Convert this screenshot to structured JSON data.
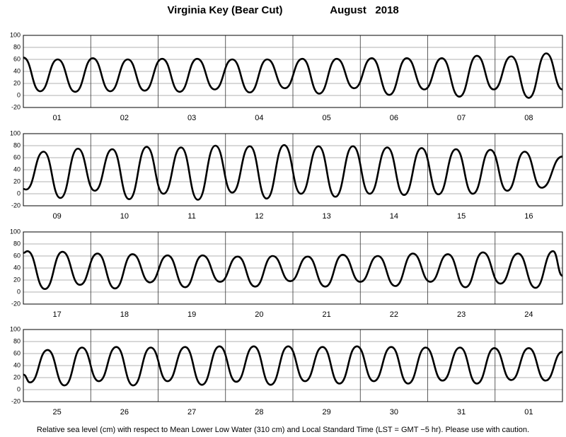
{
  "title": "Virginia Key (Bear Cut)",
  "subtitle": "August   2018",
  "note": "Relative sea level (cm) with respect to Mean Lower Low Water (310 cm) and Local Standard Time (LST = GMT −5 hr). Please use with caution.",
  "chart_data": [
    {
      "type": "line",
      "xlim": [
        0,
        8
      ],
      "ylim": [
        -20,
        100
      ],
      "yticks": [
        -20,
        0,
        20,
        40,
        60,
        80,
        100
      ],
      "grid": true,
      "xgrid": [
        1,
        2,
        3,
        4,
        5,
        6,
        7
      ],
      "xticks": [
        {
          "value": 0.5,
          "label": "01"
        },
        {
          "value": 1.5,
          "label": "02"
        },
        {
          "value": 2.5,
          "label": "03"
        },
        {
          "value": 3.5,
          "label": "04"
        },
        {
          "value": 4.5,
          "label": "05"
        },
        {
          "value": 5.5,
          "label": "06"
        },
        {
          "value": 6.5,
          "label": "07"
        },
        {
          "value": 7.5,
          "label": "08"
        }
      ],
      "x": [
        0,
        0.25,
        0.51,
        0.77,
        1.03,
        1.29,
        1.55,
        1.8,
        2.06,
        2.32,
        2.58,
        2.84,
        3.1,
        3.36,
        3.62,
        3.88,
        4.14,
        4.39,
        4.65,
        4.91,
        5.17,
        5.43,
        5.69,
        5.95,
        6.21,
        6.47,
        6.73,
        6.98,
        7.24,
        7.5,
        7.76,
        8
      ],
      "series": [
        {
          "color": "#000000",
          "values": [
            63,
            7,
            60,
            6,
            62,
            7,
            60,
            8,
            61,
            6,
            61,
            10,
            60,
            5,
            60,
            12,
            61,
            3,
            61,
            12,
            62,
            1,
            62,
            10,
            62,
            -2,
            66,
            10,
            65,
            -4,
            70,
            10
          ]
        }
      ]
    },
    {
      "type": "line",
      "xlim": [
        0,
        8
      ],
      "ylim": [
        -20,
        100
      ],
      "yticks": [
        -20,
        0,
        20,
        40,
        60,
        80,
        100
      ],
      "grid": true,
      "xgrid": [
        1,
        2,
        3,
        4,
        5,
        6,
        7
      ],
      "xticks": [
        {
          "value": 0.5,
          "label": "09"
        },
        {
          "value": 1.5,
          "label": "10"
        },
        {
          "value": 2.5,
          "label": "11"
        },
        {
          "value": 3.5,
          "label": "12"
        },
        {
          "value": 4.5,
          "label": "13"
        },
        {
          "value": 5.5,
          "label": "14"
        },
        {
          "value": 6.5,
          "label": "15"
        },
        {
          "value": 7.5,
          "label": "16"
        }
      ],
      "x": [
        0,
        0.04,
        0.3,
        0.55,
        0.81,
        1.06,
        1.32,
        1.57,
        1.83,
        2.08,
        2.34,
        2.59,
        2.85,
        3.1,
        3.36,
        3.61,
        3.87,
        4.12,
        4.38,
        4.63,
        4.89,
        5.14,
        5.4,
        5.65,
        5.91,
        6.16,
        6.42,
        6.67,
        6.93,
        7.18,
        7.44,
        7.69,
        8
      ],
      "series": [
        {
          "color": "#000000",
          "values": [
            8,
            7,
            70,
            -7,
            75,
            5,
            74,
            -9,
            78,
            0,
            77,
            -10,
            80,
            2,
            79,
            -8,
            81,
            0,
            79,
            -5,
            79,
            0,
            77,
            -2,
            76,
            -1,
            74,
            0,
            73,
            5,
            70,
            10,
            62
          ]
        }
      ]
    },
    {
      "type": "line",
      "xlim": [
        0,
        8
      ],
      "ylim": [
        -20,
        100
      ],
      "yticks": [
        -20,
        0,
        20,
        40,
        60,
        80,
        100
      ],
      "grid": true,
      "xgrid": [
        1,
        2,
        3,
        4,
        5,
        6,
        7
      ],
      "xticks": [
        {
          "value": 0.5,
          "label": "17"
        },
        {
          "value": 1.5,
          "label": "18"
        },
        {
          "value": 2.5,
          "label": "19"
        },
        {
          "value": 3.5,
          "label": "20"
        },
        {
          "value": 4.5,
          "label": "21"
        },
        {
          "value": 5.5,
          "label": "22"
        },
        {
          "value": 6.5,
          "label": "23"
        },
        {
          "value": 7.5,
          "label": "24"
        }
      ],
      "x": [
        0,
        0.06,
        0.32,
        0.58,
        0.84,
        1.1,
        1.36,
        1.62,
        1.88,
        2.14,
        2.4,
        2.66,
        2.92,
        3.18,
        3.44,
        3.7,
        3.96,
        4.22,
        4.48,
        4.74,
        5,
        5.26,
        5.52,
        5.78,
        6.04,
        6.3,
        6.56,
        6.82,
        7.08,
        7.34,
        7.6,
        7.86,
        8
      ],
      "series": [
        {
          "color": "#000000",
          "values": [
            65,
            68,
            5,
            67,
            12,
            64,
            6,
            63,
            16,
            61,
            8,
            61,
            17,
            59,
            9,
            60,
            18,
            59,
            9,
            62,
            17,
            60,
            10,
            64,
            17,
            63,
            8,
            66,
            14,
            64,
            7,
            68,
            27
          ]
        }
      ]
    },
    {
      "type": "line",
      "xlim": [
        0,
        8
      ],
      "ylim": [
        -20,
        100
      ],
      "yticks": [
        -20,
        0,
        20,
        40,
        60,
        80,
        100
      ],
      "grid": true,
      "xgrid": [
        1,
        2,
        3,
        4,
        5,
        6,
        7
      ],
      "xticks": [
        {
          "value": 0.5,
          "label": "25"
        },
        {
          "value": 1.5,
          "label": "26"
        },
        {
          "value": 2.5,
          "label": "27"
        },
        {
          "value": 3.5,
          "label": "28"
        },
        {
          "value": 4.5,
          "label": "29"
        },
        {
          "value": 5.5,
          "label": "30"
        },
        {
          "value": 6.5,
          "label": "31"
        },
        {
          "value": 7.5,
          "label": "01"
        }
      ],
      "x": [
        0,
        0.1,
        0.36,
        0.61,
        0.87,
        1.12,
        1.38,
        1.63,
        1.89,
        2.14,
        2.4,
        2.65,
        2.91,
        3.16,
        3.42,
        3.67,
        3.93,
        4.18,
        4.44,
        4.69,
        4.95,
        5.2,
        5.46,
        5.71,
        5.97,
        6.22,
        6.48,
        6.73,
        6.99,
        7.24,
        7.5,
        7.75,
        8
      ],
      "series": [
        {
          "color": "#000000",
          "values": [
            25,
            12,
            66,
            7,
            70,
            14,
            71,
            7,
            70,
            14,
            71,
            8,
            72,
            13,
            72,
            8,
            72,
            14,
            71,
            10,
            72,
            14,
            71,
            10,
            70,
            15,
            70,
            10,
            69,
            16,
            69,
            15,
            63
          ]
        }
      ]
    }
  ]
}
